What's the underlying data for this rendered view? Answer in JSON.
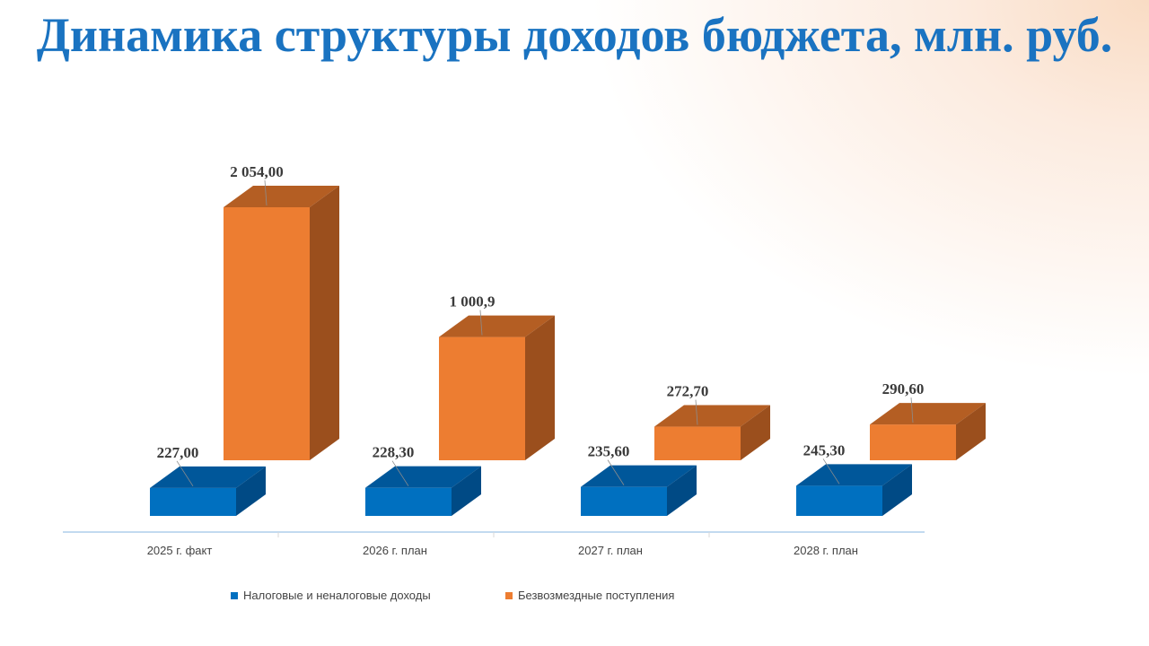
{
  "title": "Динамика структуры доходов бюджета, млн. руб.",
  "colors": {
    "tax_front": "#0070c0",
    "tax_top": "#00579a",
    "tax_side": "#004a85",
    "grant_front": "#ed7d31",
    "grant_top": "#b45e23",
    "grant_side": "#9b4f1d",
    "title": "#1a73c1"
  },
  "chart_data": {
    "type": "bar",
    "title": "Динамика структуры доходов бюджета, млн. руб.",
    "categories": [
      "2025 г. факт",
      "2026 г. план",
      "2027 г. план",
      "2028 г. план"
    ],
    "series": [
      {
        "name": "Налоговые и неналоговые доходы",
        "values": [
          227.0,
          228.3,
          235.6,
          245.3
        ],
        "labels": [
          "227,00",
          "228,30",
          "235,60",
          "245,30"
        ]
      },
      {
        "name": "Безвозмездные поступления",
        "values": [
          2054.0,
          1000.9,
          272.7,
          290.6
        ],
        "labels": [
          "2 054,00",
          "1 000,9",
          "272,70",
          "290,60"
        ]
      }
    ],
    "legend_position": "bottom",
    "grid": false,
    "style": "3d-column"
  }
}
